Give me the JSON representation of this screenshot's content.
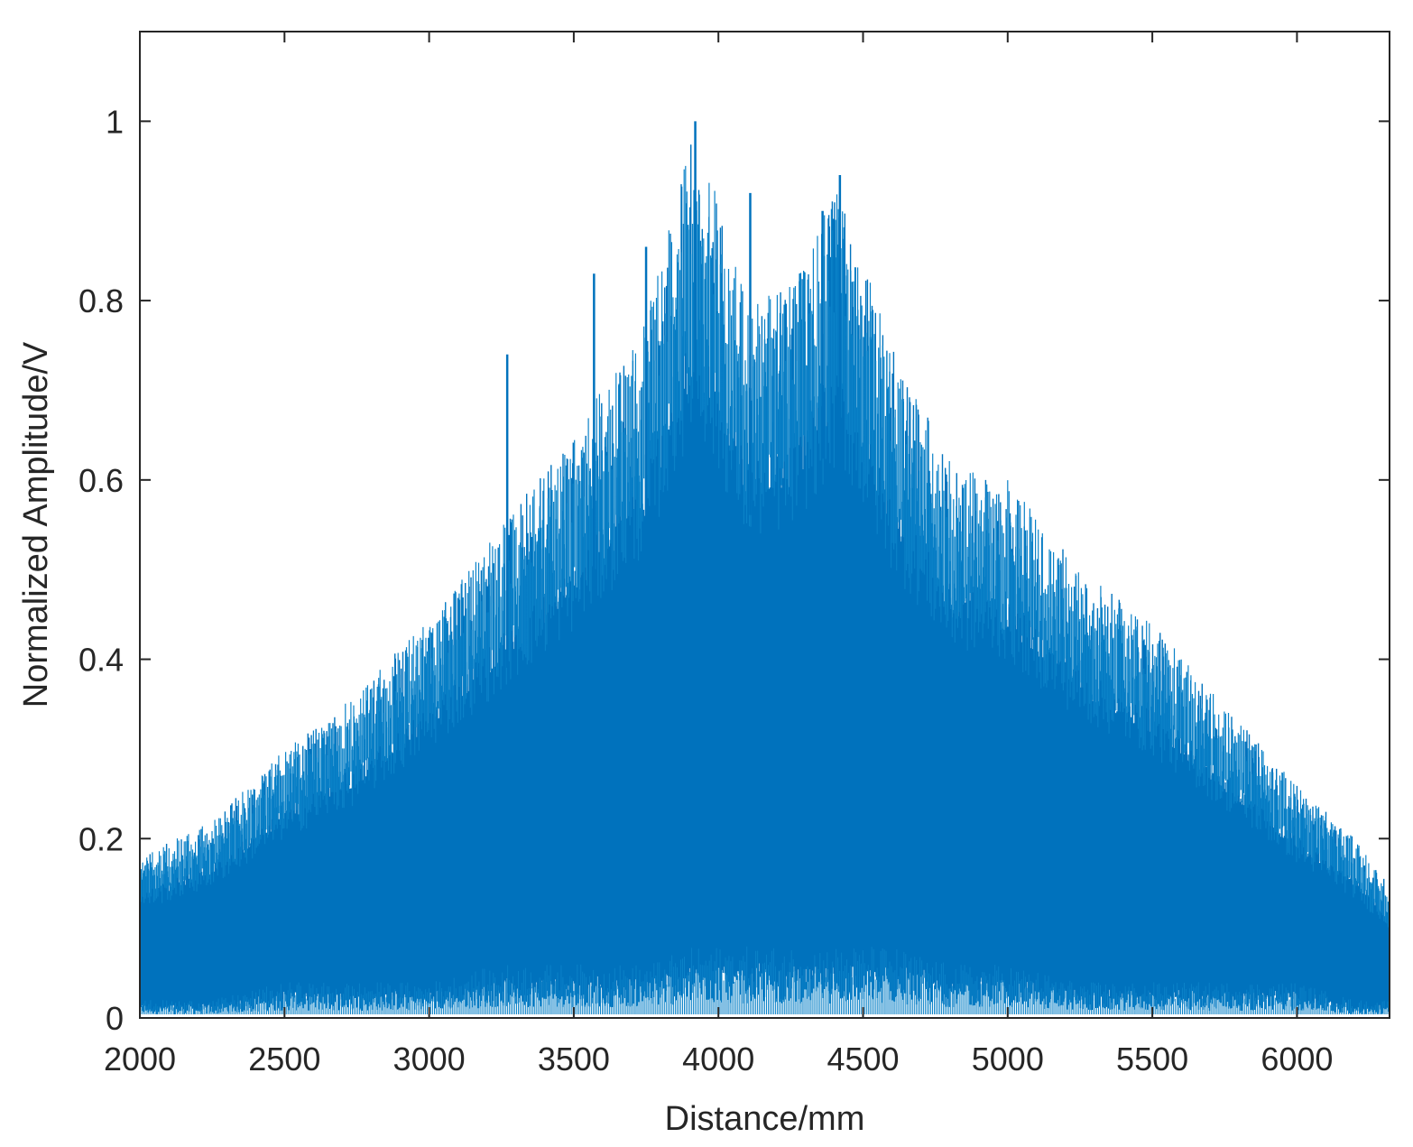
{
  "chart_data": {
    "type": "area",
    "title": "",
    "xlabel": "Distance/mm",
    "ylabel": "Normalized Amplitude/V",
    "xlim": [
      2000,
      6320
    ],
    "ylim": [
      0,
      1.1
    ],
    "x_ticks": [
      2000,
      2500,
      3000,
      3500,
      4000,
      4500,
      5000,
      5500,
      6000
    ],
    "x_tick_labels": [
      "2000",
      "2500",
      "3000",
      "3500",
      "4000",
      "4500",
      "5000",
      "5500",
      "6000"
    ],
    "y_ticks": [
      0,
      0.2,
      0.4,
      0.6,
      0.8,
      1
    ],
    "y_tick_labels": [
      "0",
      "0.2",
      "0.4",
      "0.6",
      "0.8",
      "1"
    ],
    "grid": false,
    "series_color": "#0072BD",
    "envelope_description": "dense oscillating signal; upper envelope rises from about 0.18 at 2000 mm to a peak near 1.0 at about 3920 mm and falls to about 0.15 at 6320 mm; lower envelope near 0.01-0.03",
    "envelope_points": {
      "x": [
        2000,
        2250,
        2500,
        2750,
        3000,
        3250,
        3500,
        3750,
        3920,
        4100,
        4250,
        4420,
        4600,
        4800,
        5000,
        5250,
        5500,
        5750,
        6000,
        6200,
        6320
      ],
      "upper": [
        0.18,
        0.22,
        0.3,
        0.36,
        0.45,
        0.55,
        0.65,
        0.78,
        1.0,
        0.8,
        0.82,
        0.93,
        0.75,
        0.62,
        0.6,
        0.5,
        0.44,
        0.35,
        0.26,
        0.2,
        0.15
      ],
      "lower": [
        0.01,
        0.01,
        0.02,
        0.02,
        0.02,
        0.03,
        0.03,
        0.03,
        0.04,
        0.04,
        0.04,
        0.04,
        0.04,
        0.03,
        0.03,
        0.02,
        0.02,
        0.02,
        0.02,
        0.01,
        0.01
      ]
    },
    "notable_peaks": {
      "x": [
        3270,
        3570,
        3750,
        3920,
        4110,
        4420,
        4360
      ],
      "y": [
        0.74,
        0.83,
        0.86,
        1.0,
        0.92,
        0.94,
        0.9
      ]
    }
  }
}
